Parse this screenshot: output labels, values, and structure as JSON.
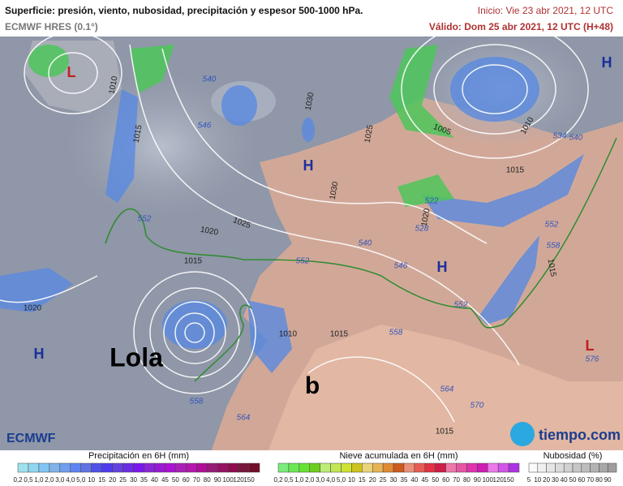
{
  "header": {
    "title": "Superficie: presión, viento, nubosidad, precipitación y espesor 500-1000 hPa.",
    "model": "ECMWF HRES (0.1°)",
    "init": "Inicio: Vie 23 abr 2021, 12 UTC",
    "valid": "Válido: Dom 25 abr 2021, 12 UTC (H+48)"
  },
  "map": {
    "pressure_centers": [
      "L",
      "H",
      "H",
      "H",
      "H",
      "L"
    ],
    "storm_names": [
      "Lola",
      "b"
    ],
    "isobar_labels": [
      "1010",
      "1015",
      "1030",
      "1025",
      "1030",
      "1025",
      "1020",
      "1015",
      "1005",
      "1010",
      "1015",
      "1020",
      "1015",
      "1010",
      "1015",
      "1020",
      "1015"
    ],
    "thickness_labels": [
      "540",
      "546",
      "552",
      "540",
      "546",
      "552",
      "522",
      "528",
      "534",
      "540",
      "552",
      "558",
      "558",
      "564",
      "570",
      "576",
      "552",
      "558",
      "564"
    ]
  },
  "logos": {
    "left": "ECMWF",
    "right": "tiempo.com"
  },
  "legends": [
    {
      "title": "Precipitación en 6H (mm)",
      "ticks": [
        "0,2",
        "0,5",
        "1,0",
        "2,0",
        "3,0",
        "4,0",
        "5,0",
        "10",
        "15",
        "20",
        "25",
        "30",
        "35",
        "40",
        "45",
        "50",
        "60",
        "70",
        "80",
        "90",
        "100",
        "120",
        "150"
      ]
    },
    {
      "title": "Nieve acumulada en 6H (mm)",
      "ticks": [
        "0,2",
        "0,5",
        "1,0",
        "2,0",
        "3,0",
        "4,0",
        "5,0",
        "10",
        "15",
        "20",
        "25",
        "30",
        "35",
        "40",
        "45",
        "50",
        "60",
        "70",
        "80",
        "90",
        "100",
        "120",
        "150"
      ]
    },
    {
      "title": "Nubosidad (%)",
      "ticks": [
        "5",
        "10",
        "20",
        "30",
        "40",
        "50",
        "60",
        "70",
        "80",
        "90"
      ]
    }
  ]
}
